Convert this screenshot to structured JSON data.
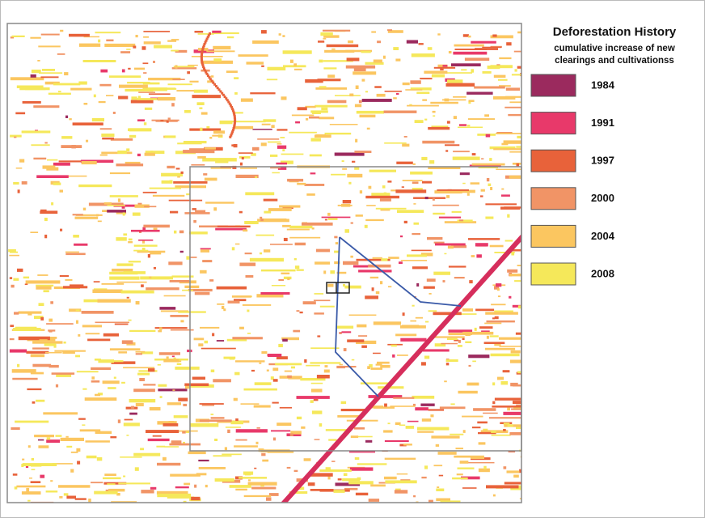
{
  "legend": {
    "title": "Deforestation History",
    "subtitle": [
      "cumulative increase of new",
      "clearings and cultivationss"
    ],
    "items": [
      {
        "label": "1984",
        "color": "#9b2a5e"
      },
      {
        "label": "1991",
        "color": "#e8396a"
      },
      {
        "label": "1997",
        "color": "#e8623a"
      },
      {
        "label": "2000",
        "color": "#f19466"
      },
      {
        "label": "2004",
        "color": "#fbc660"
      },
      {
        "label": "2008",
        "color": "#f5e85a"
      }
    ]
  }
}
